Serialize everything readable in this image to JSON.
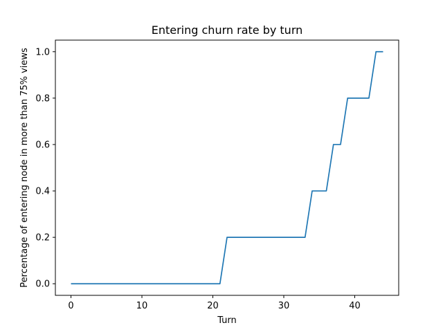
{
  "chart_data": {
    "type": "line",
    "title": "Entering churn rate by turn",
    "xlabel": "Turn",
    "ylabel": "Percentage of entering node in more than 75% views",
    "xlim": [
      -2.2,
      46.2
    ],
    "ylim": [
      -0.05,
      1.05
    ],
    "xticks": [
      0,
      10,
      20,
      30,
      40
    ],
    "xtick_labels": [
      "0",
      "10",
      "20",
      "30",
      "40"
    ],
    "yticks": [
      0.0,
      0.2,
      0.4,
      0.6,
      0.8,
      1.0
    ],
    "ytick_labels": [
      "0.0",
      "0.2",
      "0.4",
      "0.6",
      "0.8",
      "1.0"
    ],
    "grid": false,
    "series": [
      {
        "color": "#1f77b4",
        "x": [
          0,
          1,
          2,
          3,
          4,
          5,
          6,
          7,
          8,
          9,
          10,
          11,
          12,
          13,
          14,
          15,
          16,
          17,
          18,
          19,
          20,
          21,
          22,
          23,
          24,
          25,
          26,
          27,
          28,
          29,
          30,
          31,
          32,
          33,
          34,
          35,
          36,
          37,
          38,
          39,
          40,
          41,
          42,
          43,
          44
        ],
        "y": [
          0,
          0,
          0,
          0,
          0,
          0,
          0,
          0,
          0,
          0,
          0,
          0,
          0,
          0,
          0,
          0,
          0,
          0,
          0,
          0,
          0,
          0,
          0.2,
          0.2,
          0.2,
          0.2,
          0.2,
          0.2,
          0.2,
          0.2,
          0.2,
          0.2,
          0.2,
          0.2,
          0.4,
          0.4,
          0.4,
          0.6,
          0.6,
          0.8,
          0.8,
          0.8,
          0.8,
          1.0,
          1.0
        ]
      }
    ]
  }
}
